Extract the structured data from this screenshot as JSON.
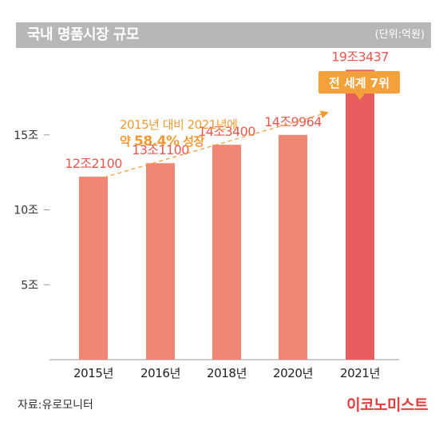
{
  "header": {
    "title": "국내 명품시장 규모",
    "unit": "(단위:억원)"
  },
  "footer": {
    "source": "자료:유로모니터",
    "brand": "이코노미스트"
  },
  "annotation": {
    "line1": "2015년 대비 2021년에",
    "line2_prefix": "약 ",
    "line2_value": "58.4%",
    "line2_suffix": " 성장",
    "callout": "전 세계 7위"
  },
  "chart_data": {
    "type": "bar",
    "categories": [
      "2015년",
      "2016년",
      "2018년",
      "2020년",
      "2021년"
    ],
    "values": [
      122100,
      131100,
      143400,
      149964,
      193437
    ],
    "data_labels": [
      "12조2100",
      "13조1100",
      "14조3400",
      "14조9964",
      "19조3437"
    ],
    "yticks": [
      50000,
      100000,
      150000
    ],
    "ytick_labels": [
      "5조",
      "10조",
      "15조"
    ],
    "ylim": [
      0,
      200000
    ],
    "grid": false,
    "legend": "none",
    "colors": {
      "bar": "#ef8676",
      "highlight_bar": "#ea5d5e",
      "label": "#e8584e",
      "annotation": "#f29a33",
      "callout_bg": "#f3a13a",
      "axis": "#999999"
    }
  }
}
